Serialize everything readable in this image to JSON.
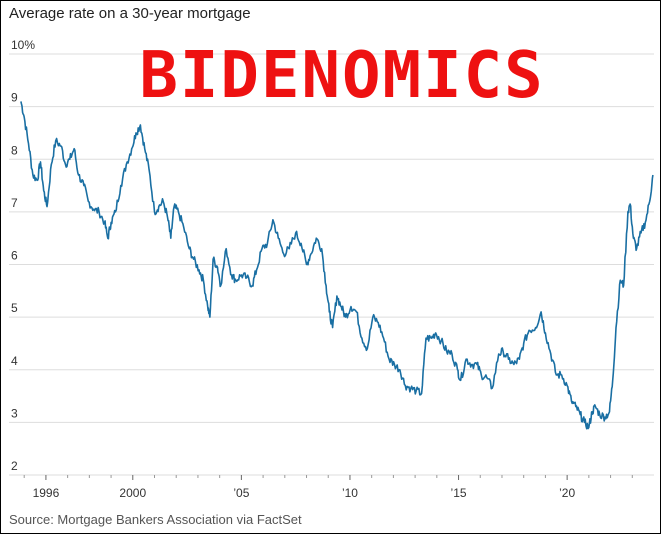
{
  "chart_data": {
    "type": "line",
    "title": "Average rate on a 30-year mortgage",
    "source": "Source: Mortgage Bankers Association via FactSet",
    "overlay_text": "BIDENOMICS",
    "colors": {
      "line": "#1a6fa3",
      "grid": "#dddddd",
      "overlay": "#ee1111"
    },
    "grid": true,
    "ylim": [
      2,
      10
    ],
    "xlim": [
      1994.3,
      2024.0
    ],
    "y_ticks": [
      {
        "value": 10,
        "label": "10%"
      },
      {
        "value": 9,
        "label": "9"
      },
      {
        "value": 8,
        "label": "8"
      },
      {
        "value": 7,
        "label": "7"
      },
      {
        "value": 6,
        "label": "6"
      },
      {
        "value": 5,
        "label": "5"
      },
      {
        "value": 4,
        "label": "4"
      },
      {
        "value": 3,
        "label": "3"
      },
      {
        "value": 2,
        "label": "2"
      }
    ],
    "x_ticks": [
      {
        "value": 1996,
        "label": "1996"
      },
      {
        "value": 2000,
        "label": "2000"
      },
      {
        "value": 2005,
        "label": "’05"
      },
      {
        "value": 2010,
        "label": "’10"
      },
      {
        "value": 2015,
        "label": "’15"
      },
      {
        "value": 2020,
        "label": "’20"
      }
    ],
    "series": [
      {
        "points": [
          [
            1994.85,
            9.1
          ],
          [
            1995.0,
            8.8
          ],
          [
            1995.2,
            8.3
          ],
          [
            1995.4,
            7.7
          ],
          [
            1995.6,
            7.6
          ],
          [
            1995.75,
            7.95
          ],
          [
            1995.9,
            7.4
          ],
          [
            1996.05,
            7.1
          ],
          [
            1996.25,
            7.9
          ],
          [
            1996.45,
            8.35
          ],
          [
            1996.7,
            8.25
          ],
          [
            1996.9,
            7.9
          ],
          [
            1997.1,
            8.0
          ],
          [
            1997.3,
            8.2
          ],
          [
            1997.5,
            7.7
          ],
          [
            1997.75,
            7.5
          ],
          [
            1997.95,
            7.2
          ],
          [
            1998.2,
            7.05
          ],
          [
            1998.45,
            7.0
          ],
          [
            1998.7,
            6.8
          ],
          [
            1998.85,
            6.5
          ],
          [
            1999.0,
            6.8
          ],
          [
            1999.2,
            7.0
          ],
          [
            1999.45,
            7.5
          ],
          [
            1999.7,
            7.9
          ],
          [
            1999.95,
            8.2
          ],
          [
            2000.15,
            8.5
          ],
          [
            2000.35,
            8.65
          ],
          [
            2000.55,
            8.2
          ],
          [
            2000.75,
            7.8
          ],
          [
            2001.0,
            7.0
          ],
          [
            2001.2,
            7.1
          ],
          [
            2001.4,
            7.2
          ],
          [
            2001.6,
            6.9
          ],
          [
            2001.75,
            6.5
          ],
          [
            2001.9,
            7.1
          ],
          [
            2002.1,
            7.0
          ],
          [
            2002.35,
            6.7
          ],
          [
            2002.6,
            6.3
          ],
          [
            2002.8,
            6.1
          ],
          [
            2003.05,
            5.9
          ],
          [
            2003.25,
            5.7
          ],
          [
            2003.45,
            5.2
          ],
          [
            2003.55,
            5.0
          ],
          [
            2003.7,
            6.1
          ],
          [
            2003.9,
            5.95
          ],
          [
            2004.05,
            5.6
          ],
          [
            2004.3,
            6.3
          ],
          [
            2004.55,
            5.8
          ],
          [
            2004.75,
            5.7
          ],
          [
            2005.0,
            5.8
          ],
          [
            2005.25,
            5.75
          ],
          [
            2005.5,
            5.6
          ],
          [
            2005.7,
            5.9
          ],
          [
            2005.95,
            6.3
          ],
          [
            2006.2,
            6.4
          ],
          [
            2006.45,
            6.85
          ],
          [
            2006.7,
            6.5
          ],
          [
            2006.95,
            6.2
          ],
          [
            2007.2,
            6.3
          ],
          [
            2007.5,
            6.6
          ],
          [
            2007.75,
            6.4
          ],
          [
            2008.0,
            6.0
          ],
          [
            2008.2,
            6.2
          ],
          [
            2008.45,
            6.5
          ],
          [
            2008.7,
            6.3
          ],
          [
            2008.9,
            5.6
          ],
          [
            2009.05,
            5.1
          ],
          [
            2009.2,
            4.8
          ],
          [
            2009.4,
            5.4
          ],
          [
            2009.6,
            5.2
          ],
          [
            2009.8,
            5.0
          ],
          [
            2010.05,
            5.2
          ],
          [
            2010.3,
            5.1
          ],
          [
            2010.55,
            4.6
          ],
          [
            2010.8,
            4.4
          ],
          [
            2011.05,
            5.0
          ],
          [
            2011.3,
            4.9
          ],
          [
            2011.55,
            4.6
          ],
          [
            2011.8,
            4.2
          ],
          [
            2012.05,
            4.1
          ],
          [
            2012.3,
            4.0
          ],
          [
            2012.55,
            3.7
          ],
          [
            2012.8,
            3.65
          ],
          [
            2013.05,
            3.6
          ],
          [
            2013.3,
            3.55
          ],
          [
            2013.5,
            4.6
          ],
          [
            2013.75,
            4.6
          ],
          [
            2013.95,
            4.7
          ],
          [
            2014.2,
            4.55
          ],
          [
            2014.45,
            4.35
          ],
          [
            2014.7,
            4.3
          ],
          [
            2014.95,
            4.0
          ],
          [
            2015.1,
            3.8
          ],
          [
            2015.35,
            4.2
          ],
          [
            2015.6,
            4.1
          ],
          [
            2015.85,
            4.1
          ],
          [
            2016.05,
            3.9
          ],
          [
            2016.3,
            3.85
          ],
          [
            2016.55,
            3.65
          ],
          [
            2016.85,
            4.3
          ],
          [
            2017.05,
            4.35
          ],
          [
            2017.3,
            4.2
          ],
          [
            2017.55,
            4.1
          ],
          [
            2017.8,
            4.2
          ],
          [
            2018.0,
            4.5
          ],
          [
            2018.25,
            4.75
          ],
          [
            2018.55,
            4.8
          ],
          [
            2018.8,
            5.1
          ],
          [
            2019.0,
            4.7
          ],
          [
            2019.25,
            4.3
          ],
          [
            2019.5,
            3.9
          ],
          [
            2019.75,
            3.9
          ],
          [
            2020.0,
            3.7
          ],
          [
            2020.2,
            3.4
          ],
          [
            2020.4,
            3.3
          ],
          [
            2020.6,
            3.15
          ],
          [
            2020.8,
            3.0
          ],
          [
            2021.0,
            2.9
          ],
          [
            2021.15,
            3.2
          ],
          [
            2021.3,
            3.3
          ],
          [
            2021.5,
            3.15
          ],
          [
            2021.75,
            3.1
          ],
          [
            2021.95,
            3.2
          ],
          [
            2022.1,
            3.8
          ],
          [
            2022.25,
            4.8
          ],
          [
            2022.45,
            5.7
          ],
          [
            2022.6,
            5.6
          ],
          [
            2022.8,
            7.0
          ],
          [
            2022.9,
            7.15
          ],
          [
            2023.05,
            6.5
          ],
          [
            2023.2,
            6.3
          ],
          [
            2023.4,
            6.6
          ],
          [
            2023.6,
            6.8
          ],
          [
            2023.8,
            7.2
          ],
          [
            2023.95,
            7.7
          ]
        ]
      }
    ]
  }
}
